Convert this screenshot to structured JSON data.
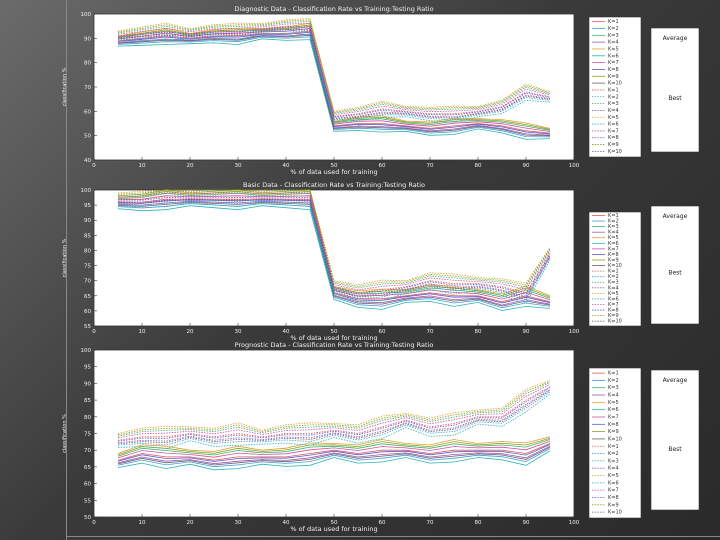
{
  "slide": {
    "background_colors": [
      "#6b6b6b",
      "#2a2a2a"
    ]
  },
  "chart_data": [
    {
      "type": "line",
      "title": "Diagnostic Data  -  Classification Rate vs Training:Testing Ratio",
      "xlabel": "% of data used for training",
      "ylabel": "classification %",
      "xlim": [
        0,
        100
      ],
      "ylim": [
        40,
        100
      ],
      "xticks": [
        "0",
        "10",
        "20",
        "30",
        "40",
        "50",
        "60",
        "70",
        "80",
        "90",
        "100"
      ],
      "yticks": [
        "40",
        "50",
        "60",
        "70",
        "80",
        "90",
        "100"
      ],
      "x": [
        5,
        10,
        15,
        20,
        25,
        30,
        35,
        40,
        45,
        50,
        55,
        60,
        65,
        70,
        75,
        80,
        85,
        90,
        95
      ],
      "legend": [
        "K=1",
        "K=2",
        "K=3",
        "K=4",
        "K=5",
        "K=6",
        "K=7",
        "K=8",
        "K=9",
        "K=10",
        "K=1",
        "K=2",
        "K=3",
        "K=4",
        "K=5",
        "K=6",
        "K=7",
        "K=8",
        "K=9",
        "K=10"
      ],
      "side_labels": [
        "Average",
        "Best"
      ],
      "groups": [
        {
          "base": [
            89,
            90,
            91,
            90,
            91,
            91,
            92,
            92,
            93,
            54,
            55,
            55,
            54,
            53,
            54,
            55,
            54,
            52,
            51
          ],
          "solid": true
        },
        {
          "base": [
            91,
            92,
            93,
            92,
            93,
            93,
            94,
            95,
            95,
            58,
            59,
            61,
            60,
            59,
            59,
            60,
            62,
            68,
            66
          ],
          "solid": false
        }
      ]
    },
    {
      "type": "line",
      "title": "Basic Data  -  Classification Rate vs Training:Testing Ratio",
      "xlabel": "% of data used for training",
      "ylabel": "classification %",
      "xlim": [
        0,
        100
      ],
      "ylim": [
        55,
        100
      ],
      "xticks": [
        "0",
        "10",
        "20",
        "30",
        "40",
        "50",
        "60",
        "70",
        "80",
        "90",
        "100"
      ],
      "yticks": [
        "55",
        "60",
        "65",
        "70",
        "75",
        "80",
        "85",
        "90",
        "95",
        "100"
      ],
      "x": [
        5,
        10,
        15,
        20,
        25,
        30,
        35,
        40,
        45,
        50,
        55,
        60,
        65,
        70,
        75,
        80,
        85,
        90,
        95
      ],
      "legend": [
        "K=1",
        "K=2",
        "K=3",
        "K=4",
        "K=5",
        "K=6",
        "K=7",
        "K=8",
        "K=9",
        "K=10",
        "K=1",
        "K=2",
        "K=3",
        "K=4",
        "K=5",
        "K=6",
        "K=7",
        "K=8",
        "K=9",
        "K=10"
      ],
      "side_labels": [
        "Average",
        "Best"
      ],
      "groups": [
        {
          "base": [
            96,
            96,
            97,
            97,
            97,
            97,
            97,
            97,
            97,
            66,
            64,
            64,
            65,
            66,
            65,
            65,
            63,
            65,
            63
          ],
          "solid": true
        },
        {
          "base": [
            97,
            97,
            98,
            98,
            98,
            98,
            98,
            98,
            98,
            68,
            66,
            67,
            68,
            70,
            69,
            69,
            68,
            66,
            79
          ],
          "solid": false
        }
      ]
    },
    {
      "type": "line",
      "title": "Prognostic Data  -  Classification Rate vs Training:Testing Ratio",
      "xlabel": "% of data used for training",
      "ylabel": "classification %",
      "xlim": [
        0,
        100
      ],
      "ylim": [
        50,
        100
      ],
      "xticks": [
        "0",
        "10",
        "20",
        "30",
        "40",
        "50",
        "60",
        "70",
        "80",
        "90",
        "100"
      ],
      "yticks": [
        "50",
        "55",
        "60",
        "65",
        "70",
        "75",
        "80",
        "85",
        "90",
        "95",
        "100"
      ],
      "x": [
        5,
        10,
        15,
        20,
        25,
        30,
        35,
        40,
        45,
        50,
        55,
        60,
        65,
        70,
        75,
        80,
        85,
        90,
        95
      ],
      "legend": [
        "K=1",
        "K=2",
        "K=3",
        "K=4",
        "K=5",
        "K=6",
        "K=7",
        "K=8",
        "K=9",
        "K=10",
        "K=1",
        "K=2",
        "K=3",
        "K=4",
        "K=5",
        "K=6",
        "K=7",
        "K=8",
        "K=9",
        "K=10"
      ],
      "side_labels": [
        "Average",
        "Best"
      ],
      "groups": [
        {
          "base": [
            67,
            69,
            68,
            68,
            67,
            68,
            68,
            68,
            69,
            70,
            69,
            70,
            70,
            69,
            70,
            70,
            70,
            69,
            72
          ],
          "solid": true
        },
        {
          "base": [
            73,
            74,
            74,
            75,
            74,
            75,
            74,
            75,
            75,
            76,
            75,
            77,
            79,
            77,
            78,
            80,
            80,
            85,
            89
          ],
          "solid": false
        }
      ]
    }
  ]
}
